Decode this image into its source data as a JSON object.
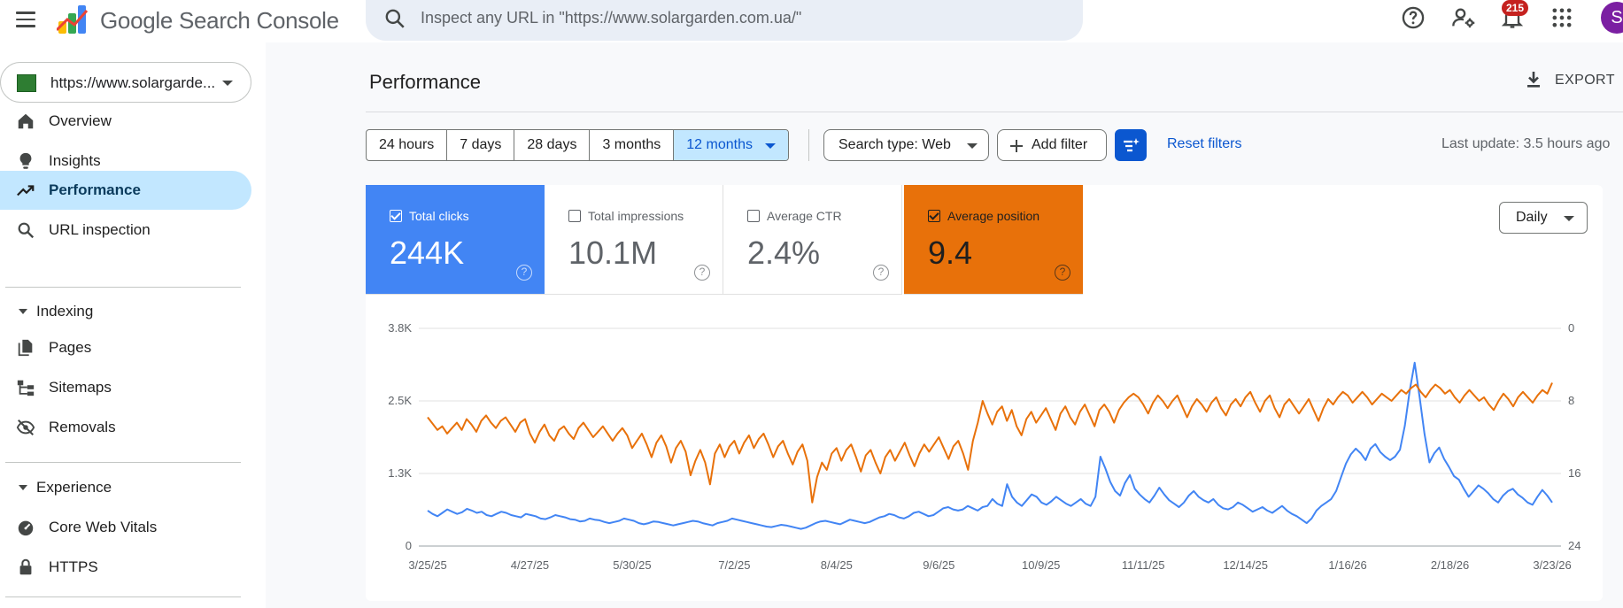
{
  "app": {
    "brand": "Google Search Console",
    "notifications_count": "215",
    "avatar_initial": "S"
  },
  "search": {
    "placeholder": "Inspect any URL in \"https://www.solargarden.com.ua/\""
  },
  "sidebar": {
    "property": "https://www.solargarde...",
    "items": [
      {
        "label": "Overview",
        "icon": "home-icon"
      },
      {
        "label": "Insights",
        "icon": "lightbulb-icon"
      },
      {
        "label": "Performance",
        "icon": "trending-up-icon",
        "active": true
      },
      {
        "label": "URL inspection",
        "icon": "search-icon"
      }
    ],
    "indexing": {
      "label": "Indexing",
      "items": [
        {
          "label": "Pages",
          "icon": "pages-icon"
        },
        {
          "label": "Sitemaps",
          "icon": "sitemap-icon"
        },
        {
          "label": "Removals",
          "icon": "eye-off-icon"
        }
      ]
    },
    "experience": {
      "label": "Experience",
      "items": [
        {
          "label": "Core Web Vitals",
          "icon": "gauge-icon"
        },
        {
          "label": "HTTPS",
          "icon": "lock-icon"
        }
      ]
    }
  },
  "main": {
    "title": "Performance",
    "export_label": "EXPORT",
    "date_ranges": [
      "24 hours",
      "7 days",
      "28 days",
      "3 months",
      "12 months"
    ],
    "selected_range": "12 months",
    "search_type": "Search type: Web",
    "add_filter": "Add filter",
    "reset_filters": "Reset filters",
    "last_update": "Last update: 3.5 hours ago",
    "granularity": "Daily"
  },
  "metrics": {
    "clicks": {
      "label": "Total clicks",
      "value": "244K",
      "checked": true,
      "color": "#4285f4"
    },
    "impressions": {
      "label": "Total impressions",
      "value": "10.1M",
      "checked": false
    },
    "ctr": {
      "label": "Average CTR",
      "value": "2.4%",
      "checked": false
    },
    "position": {
      "label": "Average position",
      "value": "9.4",
      "checked": true,
      "color": "#e8710a"
    }
  },
  "chart_data": {
    "type": "line",
    "x_labels": [
      "3/25/25",
      "4/27/25",
      "5/30/25",
      "7/2/25",
      "8/4/25",
      "9/6/25",
      "10/9/25",
      "11/11/25",
      "12/14/25",
      "1/16/26",
      "2/18/26",
      "3/23/26"
    ],
    "y_left_ticks": [
      "3.8K",
      "2.5K",
      "1.3K",
      "0"
    ],
    "y_left_range": [
      0,
      3800
    ],
    "y_right_ticks": [
      "0",
      "8",
      "16",
      "24"
    ],
    "y_right_range": [
      0,
      24
    ],
    "y_right_reversed": true,
    "grid": true,
    "series": [
      {
        "name": "Total clicks",
        "axis": "left",
        "color": "#4285f4",
        "values": [
          620,
          560,
          520,
          580,
          640,
          600,
          560,
          590,
          650,
          620,
          580,
          600,
          540,
          520,
          560,
          600,
          580,
          540,
          520,
          500,
          560,
          540,
          520,
          480,
          470,
          500,
          540,
          520,
          500,
          470,
          460,
          430,
          440,
          480,
          460,
          450,
          420,
          400,
          420,
          440,
          480,
          460,
          440,
          400,
          380,
          400,
          430,
          420,
          400,
          380,
          360,
          380,
          400,
          420,
          440,
          430,
          400,
          380,
          360,
          400,
          420,
          440,
          480,
          460,
          440,
          420,
          400,
          380,
          360,
          340,
          330,
          350,
          370,
          360,
          340,
          320,
          300,
          320,
          360,
          400,
          430,
          440,
          420,
          400,
          380,
          420,
          460,
          440,
          420,
          400,
          420,
          460,
          500,
          520,
          560,
          540,
          500,
          480,
          520,
          580,
          600,
          560,
          520,
          540,
          600,
          660,
          680,
          640,
          620,
          640,
          700,
          660,
          620,
          680,
          700,
          820,
          740,
          700,
          1080,
          860,
          760,
          700,
          800,
          900,
          860,
          760,
          720,
          780,
          860,
          800,
          740,
          700,
          760,
          820,
          740,
          700,
          860,
          1560,
          1360,
          1120,
          960,
          880,
          1100,
          1240,
          1000,
          900,
          820,
          760,
          880,
          1020,
          900,
          800,
          740,
          680,
          760,
          880,
          960,
          860,
          800,
          760,
          820,
          720,
          660,
          640,
          680,
          760,
          720,
          660,
          600,
          640,
          680,
          620,
          580,
          640,
          700,
          620,
          560,
          520,
          460,
          400,
          480,
          620,
          700,
          760,
          820,
          960,
          1200,
          1440,
          1600,
          1700,
          1620,
          1500,
          1700,
          1780,
          1640,
          1560,
          1500,
          1560,
          1680,
          2100,
          2720,
          3200,
          2600,
          1960,
          1460,
          1620,
          1720,
          1520,
          1380,
          1220,
          1160,
          1000,
          860,
          960,
          1060,
          1000,
          920,
          820,
          760,
          880,
          960,
          1000,
          900,
          840,
          760,
          720,
          860,
          980,
          880,
          760
        ]
      },
      {
        "name": "Average position",
        "axis": "right",
        "color": "#e8710a",
        "values": [
          9.8,
          10.5,
          11.2,
          10.8,
          11.6,
          11.0,
          10.4,
          11.2,
          10.0,
          10.6,
          11.4,
          10.2,
          9.6,
          10.4,
          11.0,
          10.2,
          9.8,
          10.6,
          11.4,
          10.4,
          10.0,
          11.6,
          12.6,
          11.4,
          10.6,
          11.8,
          12.4,
          11.2,
          10.8,
          11.6,
          12.2,
          11.0,
          10.4,
          11.2,
          12.0,
          11.4,
          10.8,
          11.6,
          12.4,
          11.6,
          11.0,
          11.8,
          13.2,
          12.4,
          11.6,
          12.8,
          14.2,
          12.6,
          11.8,
          13.0,
          14.8,
          13.2,
          12.4,
          13.6,
          16.2,
          14.6,
          13.4,
          14.8,
          17.2,
          13.8,
          12.8,
          14.2,
          13.0,
          12.4,
          13.8,
          12.6,
          11.8,
          13.2,
          12.2,
          11.6,
          12.8,
          14.2,
          13.0,
          12.4,
          13.8,
          15.0,
          13.6,
          12.8,
          14.6,
          19.2,
          16.4,
          14.8,
          15.6,
          13.8,
          13.2,
          14.6,
          13.4,
          12.8,
          14.2,
          15.8,
          14.0,
          13.4,
          14.8,
          16.0,
          14.2,
          13.4,
          14.6,
          13.6,
          12.6,
          14.0,
          15.2,
          13.8,
          12.8,
          13.6,
          12.8,
          12.0,
          13.2,
          14.4,
          13.0,
          12.4,
          13.8,
          15.6,
          12.4,
          10.4,
          8.0,
          9.4,
          10.6,
          9.2,
          8.6,
          10.2,
          9.0,
          10.8,
          11.8,
          10.0,
          9.2,
          10.4,
          9.6,
          8.8,
          10.0,
          11.2,
          9.4,
          8.6,
          9.8,
          10.6,
          9.2,
          8.4,
          9.6,
          10.8,
          9.0,
          8.4,
          9.2,
          10.4,
          9.0,
          8.2,
          7.6,
          7.2,
          7.6,
          8.4,
          9.4,
          8.2,
          7.4,
          8.0,
          8.8,
          8.0,
          7.4,
          8.6,
          9.8,
          8.6,
          7.8,
          8.4,
          9.2,
          8.2,
          7.6,
          8.8,
          9.6,
          8.4,
          7.8,
          8.6,
          7.6,
          7.0,
          8.2,
          9.2,
          8.0,
          7.4,
          8.8,
          9.8,
          8.4,
          7.8,
          8.6,
          9.4,
          8.6,
          7.8,
          9.0,
          10.2,
          8.8,
          7.8,
          8.4,
          7.6,
          7.0,
          7.4,
          8.2,
          7.6,
          7.0,
          7.6,
          8.4,
          7.8,
          7.2,
          7.6,
          8.0,
          7.4,
          6.8,
          7.2,
          6.6,
          6.2,
          7.0,
          7.6,
          6.8,
          6.2,
          6.6,
          7.2,
          6.8,
          7.6,
          8.2,
          7.4,
          6.8,
          7.4,
          8.0,
          7.6,
          8.4,
          9.0,
          8.0,
          7.2,
          7.8,
          8.6,
          7.6,
          7.0,
          7.6,
          8.2,
          7.4,
          6.8,
          7.2,
          6.0
        ]
      }
    ]
  }
}
